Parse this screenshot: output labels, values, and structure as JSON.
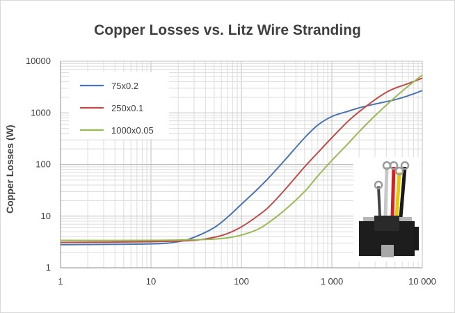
{
  "chart_data": {
    "type": "line",
    "title": "Copper Losses vs. Litz Wire Stranding",
    "xlabel": "",
    "ylabel": "Copper Losses (W)",
    "x_scale": "log",
    "y_scale": "log",
    "xlim": [
      1,
      10000
    ],
    "ylim": [
      1,
      10000
    ],
    "x_ticks": [
      "1",
      "10",
      "100",
      "1 000",
      "10 000"
    ],
    "y_ticks": [
      "1",
      "10",
      "100",
      "1000",
      "10000"
    ],
    "grid": true,
    "legend_position": "top-left",
    "series": [
      {
        "name": "75x0.2",
        "color": "#4a74b0",
        "x": [
          1,
          10,
          20,
          30,
          50,
          70,
          100,
          150,
          200,
          300,
          500,
          700,
          1000,
          1500,
          2000,
          3000,
          5000,
          7000,
          10000
        ],
        "y": [
          2.8,
          2.9,
          3.2,
          3.9,
          6,
          9.5,
          17,
          33,
          55,
          120,
          330,
          580,
          850,
          1070,
          1250,
          1480,
          1800,
          2150,
          2700
        ]
      },
      {
        "name": "250x0.1",
        "color": "#be4b48",
        "x": [
          1,
          10,
          30,
          50,
          70,
          100,
          150,
          200,
          300,
          500,
          700,
          1000,
          1500,
          2000,
          3000,
          4000,
          5000,
          7000,
          10000
        ],
        "y": [
          3.1,
          3.2,
          3.4,
          3.9,
          4.6,
          6.2,
          10,
          15,
          32,
          90,
          170,
          330,
          680,
          1050,
          1800,
          2500,
          3000,
          3700,
          4700
        ]
      },
      {
        "name": "1000x0.05",
        "color": "#98b954",
        "x": [
          1,
          10,
          30,
          50,
          70,
          100,
          150,
          200,
          300,
          500,
          700,
          1000,
          1500,
          2000,
          3000,
          5000,
          7000,
          10000
        ],
        "y": [
          3.4,
          3.4,
          3.5,
          3.6,
          3.8,
          4.3,
          5.5,
          7.5,
          13,
          30,
          60,
          120,
          250,
          430,
          880,
          2000,
          3300,
          5400
        ]
      }
    ]
  }
}
